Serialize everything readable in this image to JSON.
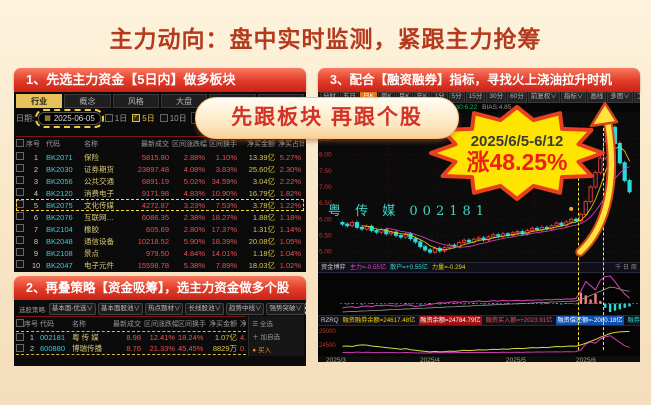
{
  "title": "主力动向：盘中实时监测，紧跟主力抢筹",
  "ribbon": "先跟板块  再跟个股",
  "badge": {
    "period": "2025/6/5-6/12",
    "gain": "涨48.25%"
  },
  "panel1": {
    "header": "1、先选主力资金【5日内】做多板块",
    "tabs": [
      {
        "label": "行业",
        "active": true
      },
      {
        "label": "概念",
        "active": false
      },
      {
        "label": "风格",
        "active": false
      },
      {
        "label": "大盘",
        "active": false
      },
      {
        "label": "自定",
        "active": false
      },
      {
        "label": "特色",
        "active": false
      }
    ],
    "date_label": "日期:",
    "calendar_icon": "▦",
    "date_value": "2025-06-05",
    "periods": [
      {
        "label": "1日",
        "checked": false
      },
      {
        "label": "5日",
        "checked": true
      },
      {
        "label": "10日",
        "checked": false
      }
    ],
    "table": {
      "group_header": "主力资金",
      "headers": [
        "",
        "序号",
        "代码",
        "名称",
        "最新成交",
        "区间涨跌幅",
        "区间换手",
        "净买金额",
        "净买占比"
      ],
      "highlight_row_index": 4,
      "rows": [
        [
          "1",
          "BK2071",
          "保险",
          "5815.80",
          "2.88%",
          "1.10%",
          "13.39亿",
          "5.27%"
        ],
        [
          "2",
          "BK2030",
          "证券期货",
          "23897.48",
          "4.08%",
          "3.83%",
          "25.60亿",
          "2.30%"
        ],
        [
          "3",
          "BK2056",
          "公共交通",
          "6891.19",
          "5.02%",
          "34.59%",
          "3.04亿",
          "2.22%"
        ],
        [
          "4",
          "BK2120",
          "消费电子",
          "9171.98",
          "4.83%",
          "10.90%",
          "16.79亿",
          "1.82%"
        ],
        [
          "5",
          "BK2075",
          "文化传媒",
          "4272.87",
          "3.23%",
          "7.53%",
          "3.78亿",
          "1.22%"
        ],
        [
          "6",
          "BK2076",
          "互联网…",
          "6086.35",
          "2.38%",
          "18.27%",
          "1.88亿",
          "1.18%"
        ],
        [
          "7",
          "BK2104",
          "橡胶",
          "605.69",
          "2.80%",
          "17.37%",
          "1.31亿",
          "1.14%"
        ],
        [
          "8",
          "BK2048",
          "通信设备",
          "10218.52",
          "5.90%",
          "18.39%",
          "20.08亿",
          "1.05%"
        ],
        [
          "9",
          "BK2108",
          "景点",
          "979.50",
          "4.84%",
          "14.01%",
          "1.18亿",
          "1.04%"
        ],
        [
          "10",
          "BK2047",
          "电子元件",
          "15598.78",
          "5.38%",
          "7.89%",
          "18.03亿",
          "1.02%"
        ]
      ]
    }
  },
  "panel2": {
    "header": "2、再叠策略【资金吸筹】，选主力资金做多个股",
    "strategy_label": "选股策略:",
    "chips": [
      {
        "label": "基本面-优选",
        "active": false
      },
      {
        "label": "基本面股池",
        "active": false
      },
      {
        "label": "热点题材",
        "active": false
      },
      {
        "label": "长线股池",
        "active": false
      },
      {
        "label": "趋势中线",
        "active": false
      },
      {
        "label": "强势突破",
        "active": false
      },
      {
        "label": "资金吸筹",
        "active": true
      }
    ],
    "headers": [
      "",
      "序号",
      "代码",
      "名称",
      "最新成交",
      "区间涨跌幅",
      "区间换手",
      "净买金额",
      "净买占比"
    ],
    "rows": [
      [
        "1",
        "002181",
        "粤 传 媒",
        "8.98",
        "12.41%",
        "18.24%",
        "1.07亿",
        "4.79%"
      ],
      [
        "2",
        "600880",
        "博瑞传播",
        "8.76",
        "21.33%",
        "45.45%",
        "8829万",
        "0.82%"
      ]
    ],
    "side_panel": [
      "☰ 全选",
      "＋ 加自选",
      "● 买入"
    ]
  },
  "panel3": {
    "header": "3、配合【融资融券】指标，寻找火上浇油拉升时机",
    "toolbar": [
      {
        "label": "分时",
        "active": false
      },
      {
        "label": "五日",
        "active": false
      },
      {
        "label": "日K",
        "active": true
      },
      {
        "label": "周K",
        "active": false
      },
      {
        "label": "月K",
        "active": false
      },
      {
        "label": "年K",
        "active": false
      },
      {
        "label": "1分",
        "active": false
      },
      {
        "label": "5分",
        "active": false
      },
      {
        "label": "15分",
        "active": false
      },
      {
        "label": "30分",
        "active": false
      },
      {
        "label": "60分",
        "active": false
      }
    ],
    "toolbar_right": [
      "前复权∨",
      "指标∨",
      "画线",
      "多图∨",
      "工具∨"
    ],
    "ma_info": [
      {
        "t": "均线",
        "c": "#cccccc"
      },
      {
        "t": "MA5:8.84",
        "c": "#eeeeee"
      },
      {
        "t": "MA10:7.59",
        "c": "#f0d000"
      },
      {
        "t": "MA20:6.46",
        "c": "#e040c0"
      },
      {
        "t": "MA30:6.22",
        "c": "#00c060"
      },
      {
        "t": "BIAS:4.85",
        "c": "#999999"
      }
    ],
    "watermark": "粤 传 媒 002181",
    "pane1_info": [
      {
        "t": "资金博弈",
        "c": "#cccccc"
      },
      {
        "t": "主力=-0.55亿",
        "c": "#e040c0"
      },
      {
        "t": "散户=+0.55亿",
        "c": "#2bd9d9"
      },
      {
        "t": "力量=-0.294",
        "c": "#f0d000"
      }
    ],
    "pane1_right": "千 日 周",
    "pane2_info": [
      {
        "t": "RZRQ",
        "c": "#cccccc"
      },
      {
        "t": "融资融券余额=24617.48亿",
        "c": "#f0d000"
      },
      {
        "t": "融资余额=24784.79亿",
        "c": "#ffffff",
        "bg": "#a01010"
      },
      {
        "t": "融资买入额=+2023.91亿",
        "c": "#e85050"
      },
      {
        "t": "融资偿还额=-2080.18亿",
        "c": "#ffffff",
        "bg": "#1050b0"
      },
      {
        "t": "融券余量=+2.08亿",
        "c": "#2bd9d9"
      }
    ],
    "x_labels": [
      {
        "t": "2025/3",
        "x": 8
      },
      {
        "t": "2025/4",
        "x": 102
      },
      {
        "t": "2025/5",
        "x": 188
      },
      {
        "t": "2025/6",
        "x": 258
      }
    ]
  },
  "chart_data": {
    "type": "candlestick",
    "symbol": "粤传媒 002181",
    "ylim": [
      4.8,
      9.2
    ],
    "y_ticks": [
      8.5,
      8.0,
      7.5,
      7.0,
      6.5,
      6.0,
      5.5,
      5.0
    ],
    "highlight_span_idx": [
      49,
      54
    ],
    "closes": [
      5.85,
      5.8,
      5.9,
      5.75,
      5.7,
      5.78,
      5.65,
      5.6,
      5.68,
      5.55,
      5.6,
      5.5,
      5.45,
      5.55,
      5.4,
      5.3,
      5.15,
      5.05,
      4.98,
      5.1,
      5.02,
      5.12,
      5.2,
      5.15,
      5.28,
      5.35,
      5.3,
      5.38,
      5.42,
      5.36,
      5.45,
      5.52,
      5.48,
      5.55,
      5.5,
      5.58,
      5.62,
      5.55,
      5.65,
      5.72,
      5.68,
      5.75,
      5.7,
      5.8,
      5.88,
      5.82,
      5.92,
      6.0,
      5.95,
      6.15,
      6.55,
      7.0,
      7.45,
      7.9,
      8.4,
      8.85,
      8.35,
      7.75,
      7.2,
      6.85
    ],
    "signal_dot_idx": [
      47,
      55
    ],
    "panes": {
      "fund_battle": {
        "line_main": [
          -0.3,
          -0.25,
          -0.22,
          -0.28,
          -0.2,
          -0.16,
          -0.22,
          -0.12,
          -0.16,
          -0.1,
          -0.14,
          -0.18,
          -0.15,
          -0.08,
          -0.12,
          -0.2,
          -0.16,
          -0.1,
          -0.05,
          0.0,
          0.08,
          0.04,
          0.1,
          0.14,
          0.1,
          0.16,
          0.12,
          0.15,
          0.2,
          0.15,
          0.18,
          0.22,
          0.18,
          0.24,
          0.2,
          0.22,
          0.25,
          0.2,
          0.26,
          0.24,
          0.28,
          0.26,
          0.3,
          0.28,
          0.32,
          0.3,
          0.35,
          0.33,
          0.38,
          0.9,
          1.6,
          1.3,
          1.0,
          1.7,
          1.95,
          2.0,
          1.6,
          1.1,
          0.7,
          0.4
        ],
        "line_slow": [
          -0.6,
          -0.58,
          -0.56,
          -0.55,
          -0.53,
          -0.52,
          -0.5,
          -0.48,
          -0.47,
          -0.45,
          -0.43,
          -0.42,
          -0.4,
          -0.38,
          -0.37,
          -0.35,
          -0.33,
          -0.32,
          -0.3,
          -0.28,
          -0.27,
          -0.25,
          -0.23,
          -0.22,
          -0.2,
          -0.18,
          -0.17,
          -0.15,
          -0.13,
          -0.12,
          -0.1,
          -0.08,
          -0.07,
          -0.05,
          -0.03,
          -0.02,
          0.0,
          0.02,
          0.03,
          0.05,
          0.07,
          0.08,
          0.1,
          0.12,
          0.13,
          0.15,
          0.17,
          0.18,
          0.2,
          0.3,
          0.45,
          0.6,
          0.75,
          0.9,
          1.05,
          1.2,
          1.15,
          1.05,
          0.95,
          0.9
        ],
        "bars": [
          0,
          -0.05,
          0.04,
          0,
          -0.06,
          0,
          0.05,
          0,
          -0.04,
          0,
          0.04,
          -0.05,
          0,
          0.05,
          -0.04,
          0,
          -0.06,
          0,
          0.05,
          0,
          -0.05,
          0.04,
          0,
          0.05,
          0,
          -0.04,
          0,
          0.05,
          0,
          -0.05,
          0,
          0.04,
          -0.04,
          0,
          0.05,
          0,
          -0.04,
          0.04,
          0,
          0.05,
          0,
          -0.04,
          0.05,
          0,
          0.04,
          -0.05,
          0.05,
          0.04,
          -0.04,
          0.8,
          0.6,
          0.3,
          0.7,
          0.2,
          -0.3,
          -0.6,
          -0.5,
          -0.4,
          -0.3,
          -0.2
        ]
      },
      "rzrq": {
        "y_labels": [
          "25000",
          "24500"
        ],
        "balance": [
          24650,
          24660,
          24640,
          24680,
          24700,
          24690,
          24660,
          24640,
          24620,
          24600,
          24580,
          24560,
          24540,
          24560,
          24520,
          24500,
          24480,
          24460,
          24440,
          24460,
          24440,
          24450,
          24470,
          24460,
          24480,
          24500,
          24490,
          24500,
          24520,
          24510,
          24520,
          24540,
          24530,
          24550,
          24540,
          24560,
          24570,
          24560,
          24580,
          24600,
          24590,
          24610,
          24600,
          24620,
          24640,
          24630,
          24650,
          24660,
          24650,
          24700,
          24760,
          24830,
          24900,
          24980,
          25050,
          25120,
          25160,
          25180,
          25190,
          25200
        ],
        "buy": [
          60,
          65,
          58,
          70,
          62,
          68,
          60,
          55,
          65,
          60,
          58,
          55,
          52,
          60,
          55,
          50,
          48,
          45,
          50,
          55,
          52,
          55,
          58,
          54,
          60,
          62,
          58,
          60,
          63,
          60,
          62,
          65,
          62,
          66,
          63,
          65,
          68,
          64,
          70,
          68,
          72,
          70,
          74,
          72,
          76,
          73,
          78,
          76,
          80,
          120,
          260,
          310,
          280,
          380,
          430,
          460,
          380,
          300,
          220,
          180
        ]
      }
    }
  }
}
